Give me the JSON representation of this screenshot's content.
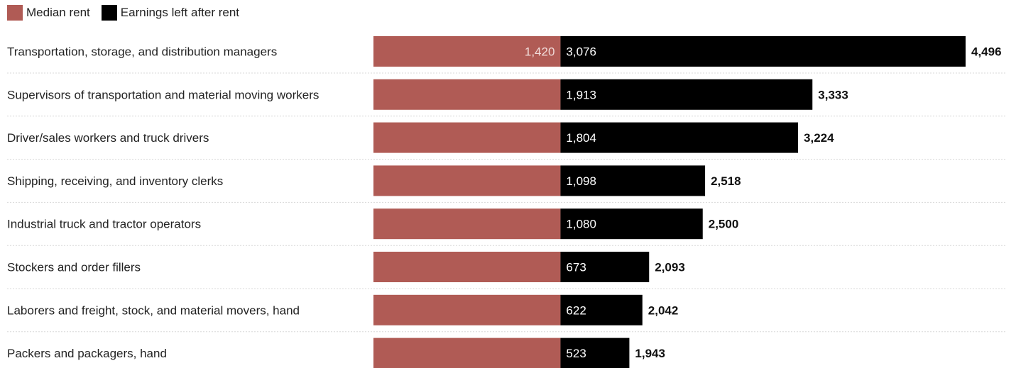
{
  "chart_data": {
    "type": "bar",
    "stacked": true,
    "orientation": "horizontal",
    "categories": [
      "Transportation, storage, and distribution managers",
      "Supervisors of transportation and material moving workers",
      "Driver/sales workers and truck drivers",
      "Shipping, receiving, and inventory clerks",
      "Industrial truck and tractor operators",
      "Stockers and order fillers",
      "Laborers and freight, stock, and material movers, hand",
      "Packers and packagers, hand"
    ],
    "series": [
      {
        "name": "Median rent",
        "color": "#b05b55",
        "values": [
          1420,
          1420,
          1420,
          1420,
          1420,
          1420,
          1420,
          1420
        ],
        "labels": [
          "1,420",
          "",
          "",
          "",
          "",
          "",
          "",
          ""
        ]
      },
      {
        "name": "Earnings left after rent",
        "color": "#000000",
        "values": [
          3076,
          1913,
          1804,
          1098,
          1080,
          673,
          622,
          523
        ],
        "labels": [
          "3,076",
          "1,913",
          "1,804",
          "1,098",
          "1,080",
          "673",
          "622",
          "523"
        ]
      }
    ],
    "totals": [
      4496,
      3333,
      3224,
      2518,
      2500,
      2093,
      2042,
      1943
    ],
    "total_labels": [
      "4,496",
      "3,333",
      "3,224",
      "2,518",
      "2,500",
      "2,093",
      "2,042",
      "1,943"
    ],
    "legend": "top-left",
    "title": "",
    "xlabel": "",
    "ylabel": ""
  }
}
